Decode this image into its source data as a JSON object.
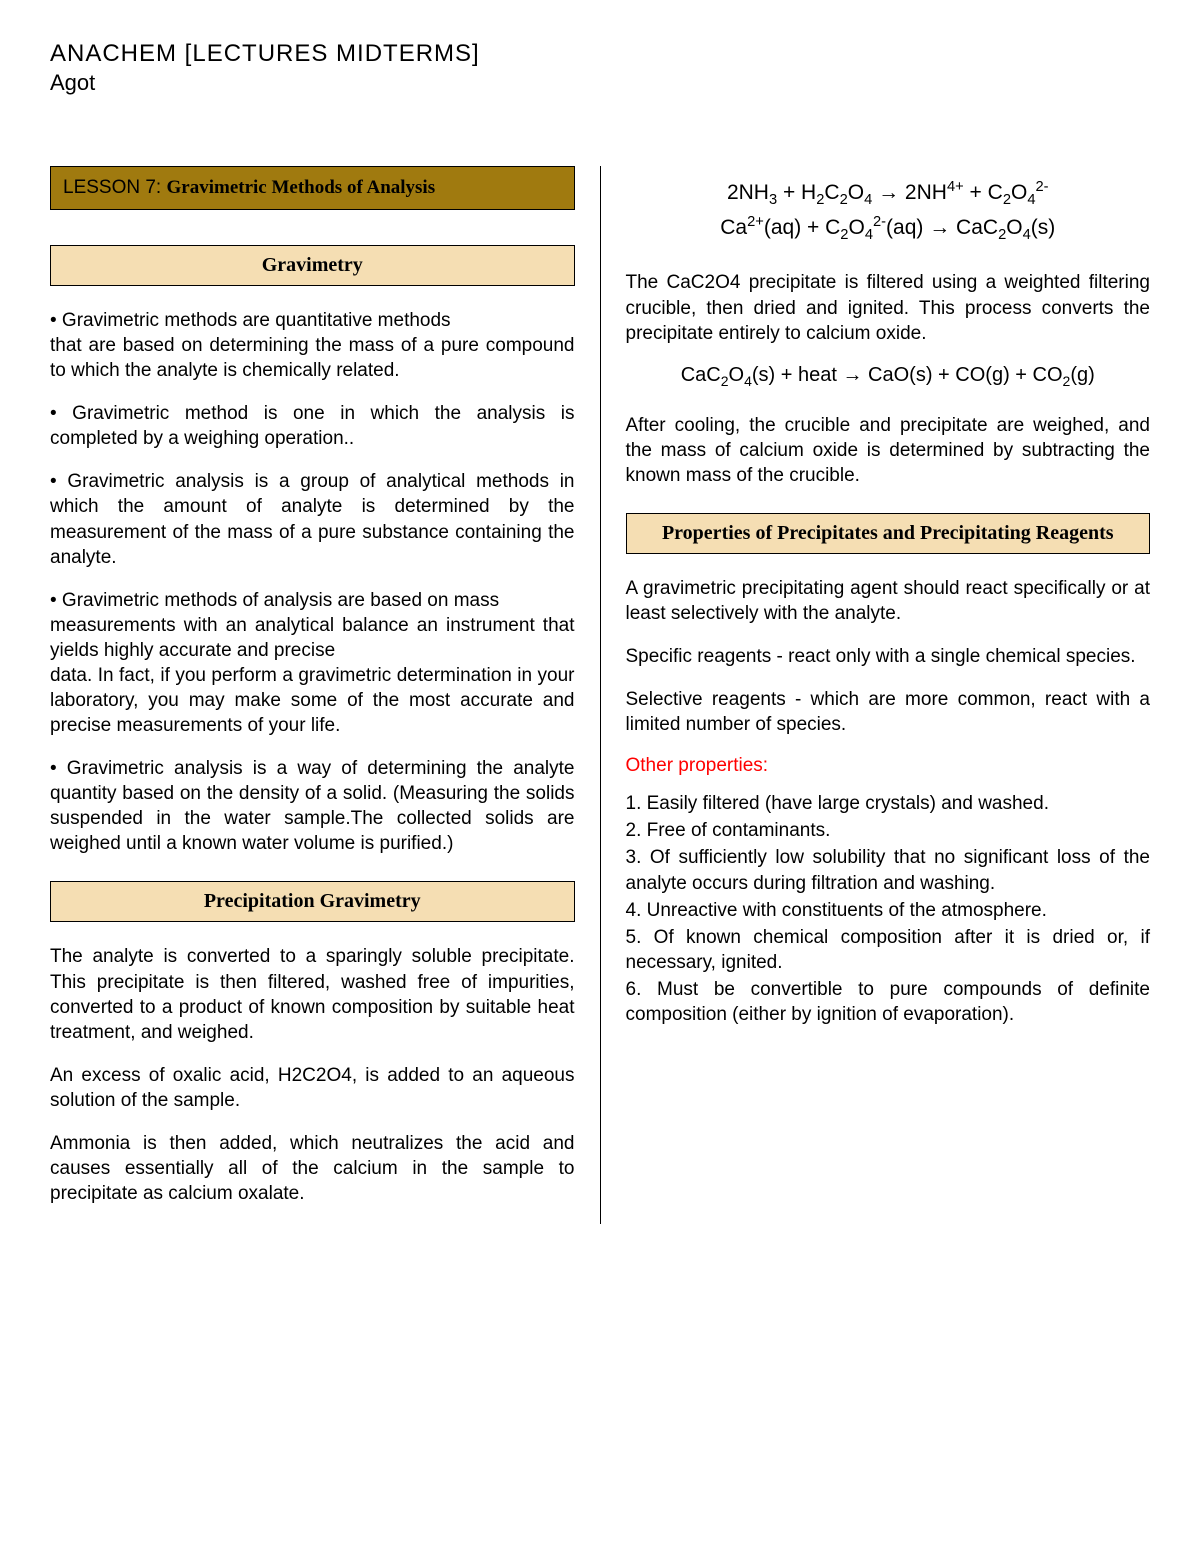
{
  "header": {
    "title": "ANACHEM [LECTURES MIDTERMS]",
    "author": "Agot"
  },
  "lesson": {
    "prefix": "LESSON 7: ",
    "title": "Gravimetric Methods of Analysis",
    "bg_color": "#a07a0f"
  },
  "sections": {
    "gravimetry": {
      "title": "Gravimetry",
      "bullets": [
        {
          "first": "• Gravimetric methods are quantitative methods",
          "rest": "that are based on determining the mass of a pure compound to which the analyte is chemically related."
        },
        {
          "rest": "• Gravimetric method is one in which the analysis is completed by a weighing operation.."
        },
        {
          "rest": "• Gravimetric analysis is a group of analytical methods in which the amount of analyte is determined by the measurement of the mass of a pure substance containing the analyte."
        },
        {
          "first": "• Gravimetric methods of analysis are based on mass",
          "rest_a": "measurements with an analytical balance an instrument that yields highly accurate and precise",
          "rest_b": "data. In fact, if you perform a gravimetric determination in your laboratory, you may make some of the most accurate and precise measurements of your life."
        },
        {
          "rest": "• Gravimetric analysis is a way of determining the analyte quantity based on the density of a solid. (Measuring the solids suspended in the water sample.The collected solids are weighed until a known water volume is purified.)"
        }
      ]
    },
    "precipitation": {
      "title": "Precipitation Gravimetry",
      "paras": [
        "The analyte is converted to a sparingly soluble precipitate. This precipitate is then filtered, washed free of impurities, converted to a product of known composition by suitable heat treatment, and weighed.",
        "An excess of oxalic acid, H2C2O4, is added to an aqueous solution of the sample.",
        "Ammonia is then added, which neutralizes the acid and causes essentially all of the calcium in the sample to precipitate as calcium oxalate."
      ]
    },
    "right_intro": {
      "para1": "The CaC2O4 precipitate is filtered using a weighted filtering crucible, then dried and ignited. This process converts the precipitate entirely to calcium oxide.",
      "para2": "After cooling, the crucible and precipitate are weighed, and the mass of calcium oxide is determined by subtracting the known mass of the crucible."
    },
    "properties": {
      "title": "Properties of Precipitates and Precipitating Reagents",
      "intro": "A gravimetric precipitating agent should react specifically or at least selectively with the analyte.",
      "specific": "Specific reagents - react only with a single chemical species.",
      "selective": "Selective reagents - which are more common, react with a limited number of species.",
      "other_label": "Other properties:",
      "items": [
        "1. Easily filtered (have large crystals) and washed.",
        "2. Free of contaminants.",
        "3. Of sufficiently low solubility that no significant loss of the analyte occurs during filtration and washing.",
        "4. Unreactive with constituents of the atmosphere.",
        "5. Of known chemical composition after it is dried or, if necessary, ignited.",
        "6. Must be convertible to pure compounds of definite composition (either by ignition of evaporation)."
      ]
    }
  },
  "colors": {
    "section_bg": "#f5deb3",
    "red": "#ff0000"
  }
}
